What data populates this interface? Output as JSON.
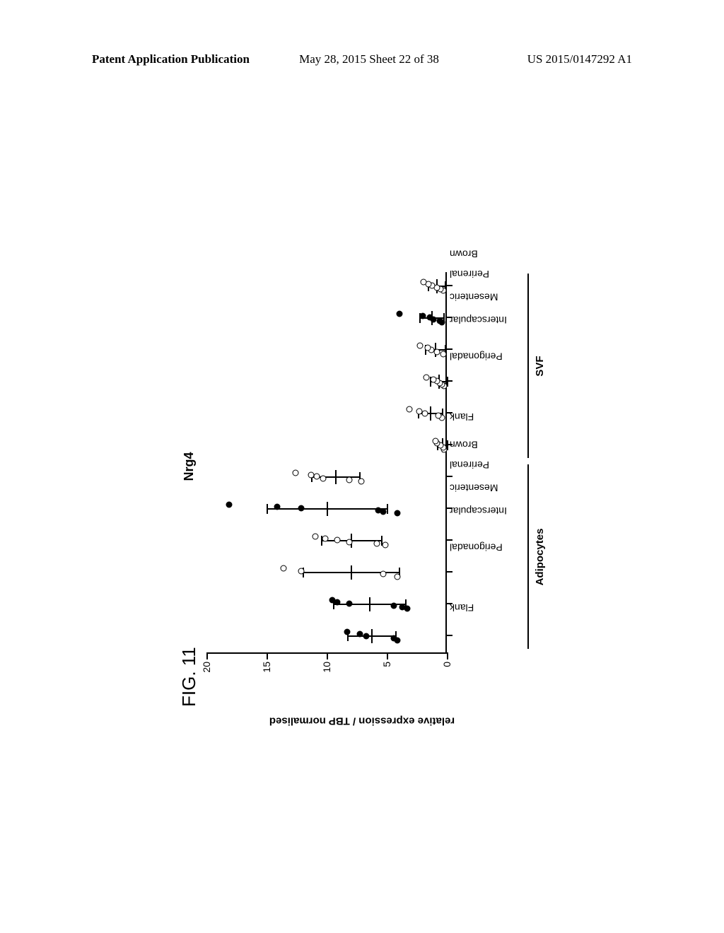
{
  "header": {
    "left": "Patent Application Publication",
    "mid": "May 28, 2015  Sheet 22 of 38",
    "right": "US 2015/0147292 A1"
  },
  "figure": {
    "label": "FIG. 11",
    "title": "Nrg4",
    "ylabel": "relative expression / TBP normalised",
    "ylim": [
      0,
      20
    ],
    "yticks": [
      0,
      5,
      10,
      15,
      20
    ],
    "groups": [
      {
        "name": "Adipocytes",
        "start": 0,
        "end": 5
      },
      {
        "name": "SVF",
        "start": 6,
        "end": 11
      }
    ],
    "categories": [
      "Flank",
      "Perigonadal",
      "Interscapular",
      "Mesenteric",
      "Perirenal",
      "Brown",
      "Flank",
      "Perigonadal",
      "Interscapular",
      "Mesenteric",
      "Perirenal",
      "Brown"
    ],
    "series": [
      {
        "cat": 0,
        "mean": 6.3,
        "err": 2.0,
        "fill": "filled",
        "points": [
          4.0,
          4.3,
          6.6,
          7.1,
          8.2
        ]
      },
      {
        "cat": 1,
        "mean": 6.5,
        "err": 3.0,
        "fill": "filled",
        "points": [
          3.2,
          3.6,
          4.3,
          8.0,
          9.0,
          9.4
        ]
      },
      {
        "cat": 2,
        "mean": 8.0,
        "err": 4.0,
        "fill": "open",
        "points": [
          4.0,
          5.2,
          12.0,
          13.5
        ]
      },
      {
        "cat": 3,
        "mean": 8.0,
        "err": 2.5,
        "fill": "open",
        "points": [
          5.0,
          5.7,
          8.0,
          9.0,
          10.0,
          10.8
        ]
      },
      {
        "cat": 4,
        "mean": 10.0,
        "err": 5.0,
        "fill": "filled",
        "points": [
          4.0,
          5.2,
          5.6,
          12.0,
          14.0,
          18.0
        ]
      },
      {
        "cat": 5,
        "mean": 9.3,
        "err": 2.0,
        "fill": "open",
        "points": [
          7.0,
          8.0,
          10.2,
          10.7,
          11.2,
          12.5
        ]
      },
      {
        "cat": 6,
        "mean": 0.4,
        "err": 0.4,
        "fill": "open",
        "points": [
          0.1,
          0.2,
          0.4,
          0.7,
          0.8
        ]
      },
      {
        "cat": 7,
        "mean": 1.4,
        "err": 1.0,
        "fill": "open",
        "points": [
          0.3,
          0.6,
          1.7,
          2.2,
          3.0
        ]
      },
      {
        "cat": 8,
        "mean": 0.7,
        "err": 0.7,
        "fill": "open",
        "points": [
          0.1,
          0.3,
          0.5,
          0.7,
          1.0,
          1.6
        ]
      },
      {
        "cat": 9,
        "mean": 1.0,
        "err": 0.8,
        "fill": "open",
        "points": [
          0.2,
          0.7,
          1.2,
          1.5,
          2.1
        ]
      },
      {
        "cat": 10,
        "mean": 1.3,
        "err": 1.0,
        "fill": "filled",
        "points": [
          0.3,
          0.5,
          1.0,
          1.3,
          1.9,
          3.8
        ]
      },
      {
        "cat": 11,
        "mean": 0.9,
        "err": 0.7,
        "fill": "open",
        "points": [
          0.2,
          0.4,
          0.7,
          1.1,
          1.4,
          1.8
        ]
      }
    ]
  }
}
